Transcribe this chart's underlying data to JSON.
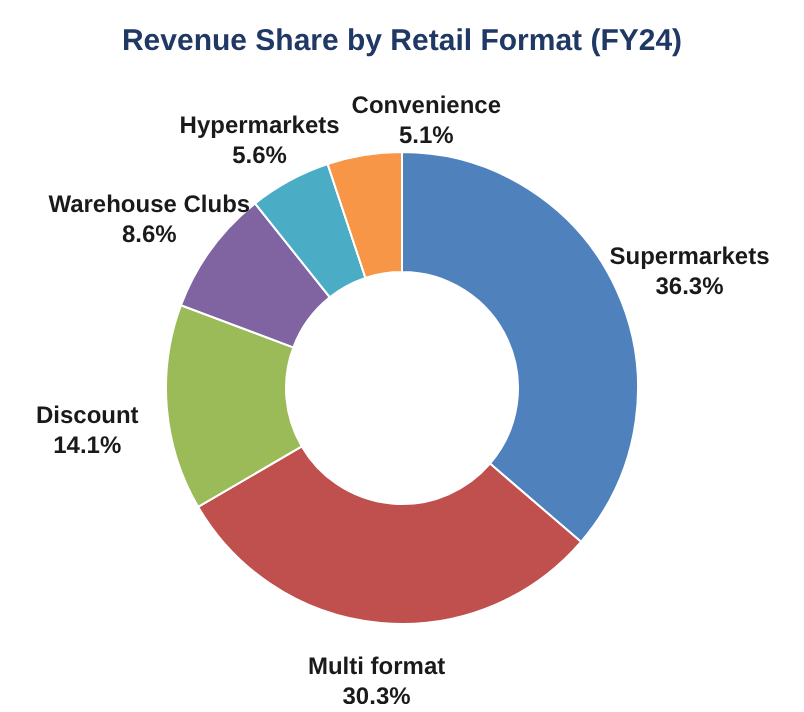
{
  "chart_data": {
    "type": "donut",
    "title": "Revenue Share by Retail Format (FY24)",
    "categories": [
      "Supermarkets",
      "Multi format",
      "Discount",
      "Warehouse Clubs",
      "Hypermarkets",
      "Convenience"
    ],
    "values": [
      36.3,
      30.3,
      14.1,
      8.6,
      5.6,
      5.1
    ],
    "colors": [
      "#4f81bd",
      "#c0504d",
      "#9bbb59",
      "#8064a2",
      "#4bacc6",
      "#f79646"
    ],
    "value_labels": [
      "36.3%",
      "30.3%",
      "14.1%",
      "8.6%",
      "5.6%",
      "5.1%"
    ],
    "legend": false
  }
}
